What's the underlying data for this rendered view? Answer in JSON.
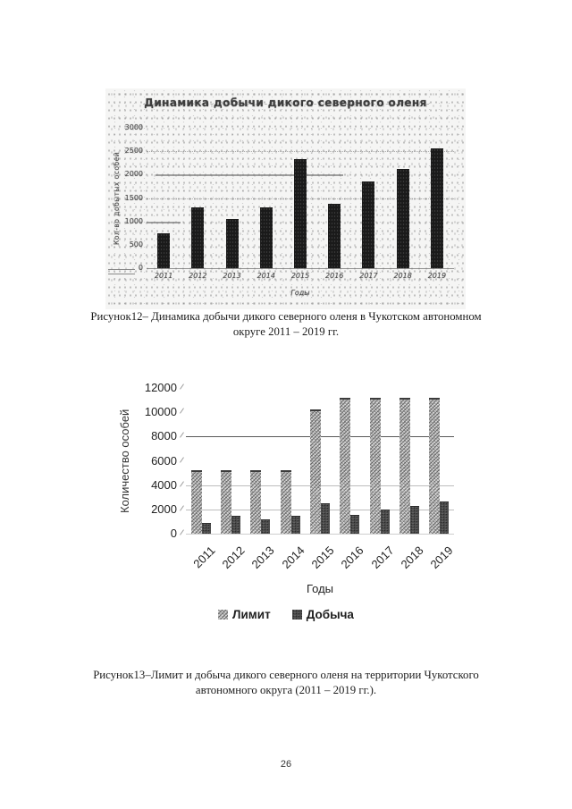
{
  "page": {
    "number": "26"
  },
  "figure1": {
    "caption_line1": "Рисунок12– Динамика добычи дикого северного оленя в Чукотском автономном",
    "caption_line2": "округе 2011 – 2019 гг."
  },
  "figure2": {
    "caption_line1": "Рисунок13–Лимит и добыча дикого северного оленя на территории Чукотского",
    "caption_line2": "автономного округа (2011 – 2019 гг.)."
  },
  "colors": {
    "fig1_bar": "#1a1a1a",
    "fig1_text": "#4a4a4a",
    "fig2_limit_fill": "#d6d6d6",
    "fig2_harvest_fill": "#4e4e4e",
    "caption_text": "#1d1d1d"
  },
  "chart_data": [
    {
      "type": "bar",
      "title": "Динамика добычи дикого северного оленя",
      "categories": [
        "2011",
        "2012",
        "2013",
        "2014",
        "2015",
        "2016",
        "2017",
        "2018",
        "2019"
      ],
      "values": [
        750,
        1300,
        1050,
        1300,
        2330,
        1380,
        1850,
        2120,
        2560
      ],
      "xlabel": "Годы",
      "ylabel": "Кол-во добытых особей",
      "ylim": [
        0,
        3000
      ],
      "yticks": [
        0,
        500,
        1000,
        1500,
        2000,
        2500,
        3000
      ],
      "grid": "partial horizontal",
      "legend_position": "none"
    },
    {
      "type": "bar",
      "title": "",
      "categories": [
        "2011",
        "2012",
        "2013",
        "2014",
        "2015",
        "2016",
        "2017",
        "2018",
        "2019"
      ],
      "series": [
        {
          "name": "Лимит",
          "values": [
            5200,
            5200,
            5200,
            5200,
            10200,
            11200,
            11200,
            11200,
            11200
          ]
        },
        {
          "name": "Добыча",
          "values": [
            900,
            1450,
            1200,
            1500,
            2500,
            1550,
            2000,
            2250,
            2650
          ]
        }
      ],
      "xlabel": "Годы",
      "ylabel": "Количество особей",
      "ylim": [
        0,
        12000
      ],
      "yticks": [
        0,
        2000,
        4000,
        6000,
        8000,
        10000,
        12000
      ],
      "grid": "horizontal at 2000/4000/8000",
      "legend_position": "bottom"
    }
  ]
}
